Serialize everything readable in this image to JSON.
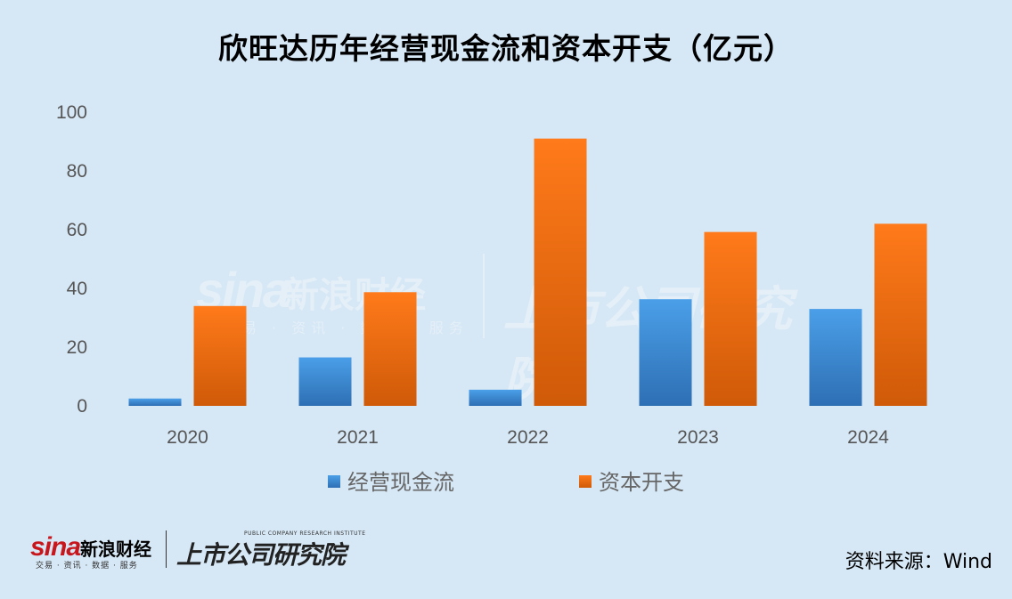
{
  "title": "欣旺达历年经营现金流和资本开支（亿元）",
  "chart_data": {
    "type": "bar",
    "categories": [
      "2020",
      "2021",
      "2022",
      "2023",
      "2024"
    ],
    "series": [
      {
        "name": "经营现金流",
        "values": [
          2.5,
          16.5,
          5.5,
          36.3,
          33.0
        ],
        "color": "#2f7fcc"
      },
      {
        "name": "资本开支",
        "values": [
          34.0,
          38.7,
          91.0,
          59.2,
          62.0
        ],
        "color": "#e8640c"
      }
    ],
    "y_ticks": [
      "0",
      "20",
      "40",
      "60",
      "80",
      "100"
    ],
    "ylim": [
      0,
      100
    ],
    "grid": false,
    "legend_position": "bottom"
  },
  "watermark": {
    "brand": "sina",
    "name": "新浪财经",
    "tagline": "交易 · 资讯 · 数据 · 服务",
    "institute": "上市公司研究院"
  },
  "footer": {
    "brand": "sina",
    "name": "新浪财经",
    "tagline": "交易 · 资讯 · 数据 · 服务",
    "institute": "上市公司研究院",
    "institute_en": "PUBLIC COMPANY RESEARCH INSTITUTE",
    "source": "资料来源：Wind"
  }
}
